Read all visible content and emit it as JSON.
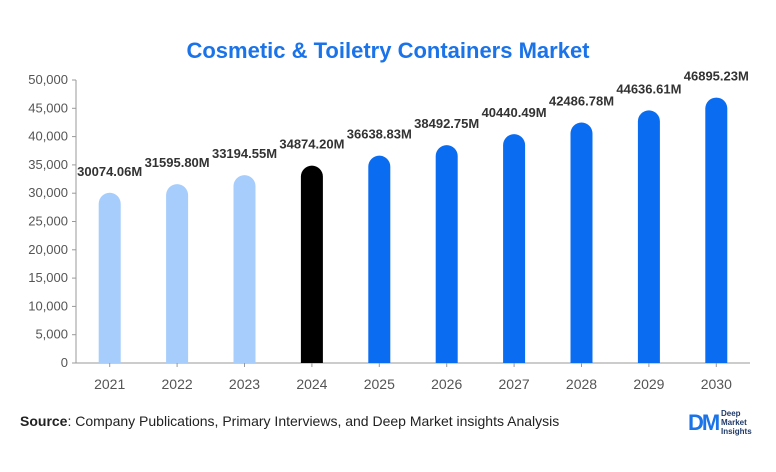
{
  "chart_data": {
    "type": "bar",
    "title": "Cosmetic & Toiletry Containers Market",
    "xlabel": "",
    "ylabel": "",
    "categories": [
      "2021",
      "2022",
      "2023",
      "2024",
      "2025",
      "2026",
      "2027",
      "2028",
      "2029",
      "2030"
    ],
    "values": [
      30074.06,
      31595.8,
      33194.55,
      34874.2,
      36638.83,
      38492.75,
      40440.49,
      42486.78,
      44636.61,
      46895.23
    ],
    "data_labels": [
      "30074.06M",
      "31595.80M",
      "33194.55M",
      "34874.20M",
      "36638.83M",
      "38492.75M",
      "40440.49M",
      "42486.78M",
      "44636.61M",
      "46895.23M"
    ],
    "ylim": [
      0,
      50000
    ],
    "yticks": [
      0,
      5000,
      10000,
      15000,
      20000,
      25000,
      30000,
      35000,
      40000,
      45000,
      50000
    ],
    "ytick_labels": [
      "0",
      "5,000",
      "10,000",
      "15,000",
      "20,000",
      "25,000",
      "30,000",
      "35,000",
      "40,000",
      "45,000",
      "50,000"
    ],
    "bar_colors": [
      "#a6cdfb",
      "#a6cdfb",
      "#a6cdfb",
      "#000000",
      "#0a6cf0",
      "#0a6cf0",
      "#0a6cf0",
      "#0a6cf0",
      "#0a6cf0",
      "#0a6cf0"
    ],
    "grid": false,
    "legend": "none"
  },
  "source": {
    "key": "Source",
    "text": ": Company Publications, Primary Interviews, and Deep Market insights Analysis"
  },
  "logo": {
    "mark": "DM",
    "line1": "Deep",
    "line2": "Market",
    "line3": "Insights"
  },
  "colors": {
    "title": "#1a73e8",
    "axis": "#999999",
    "tick_text": "#555555",
    "label_text": "#333333"
  }
}
